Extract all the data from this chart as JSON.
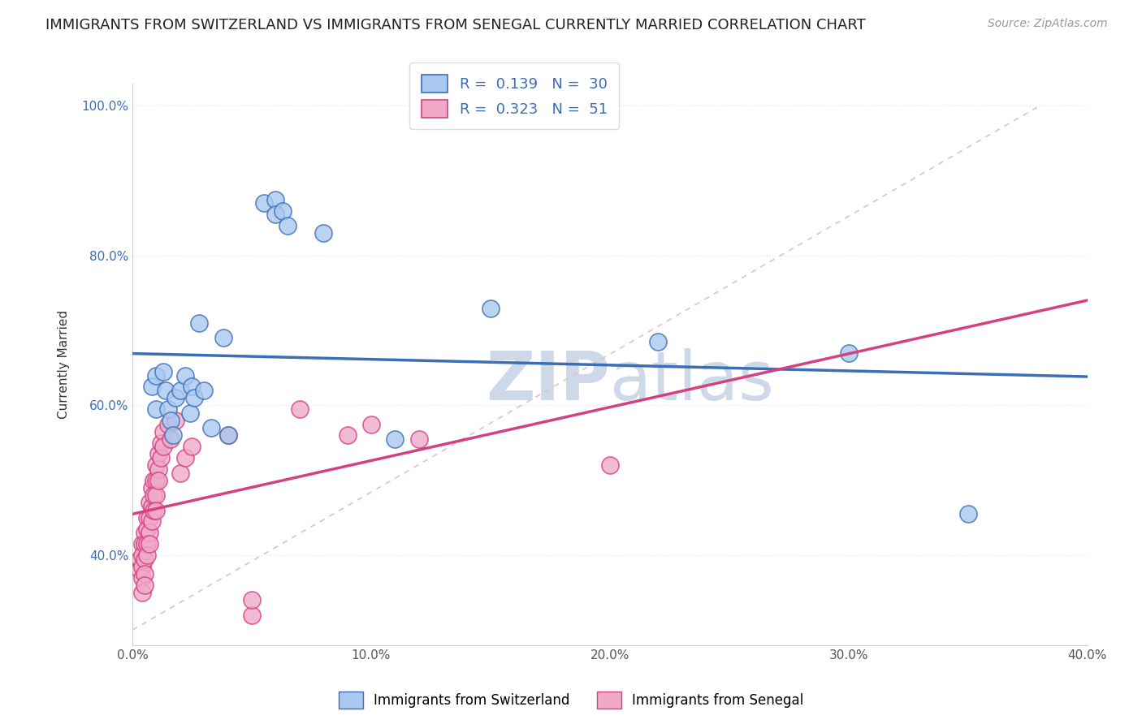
{
  "title": "IMMIGRANTS FROM SWITZERLAND VS IMMIGRANTS FROM SENEGAL CURRENTLY MARRIED CORRELATION CHART",
  "source": "Source: ZipAtlas.com",
  "ylabel": "Currently Married",
  "legend_label1": "Immigrants from Switzerland",
  "legend_label2": "Immigrants from Senegal",
  "r1": 0.139,
  "n1": 30,
  "r2": 0.323,
  "n2": 51,
  "color1": "#aac8f0",
  "color2": "#f0aac8",
  "line_color1": "#3b6eb5",
  "line_color2": "#d44080",
  "diagonal_color": "#e8c0c0",
  "xlim": [
    0.0,
    0.4
  ],
  "ylim": [
    0.28,
    1.03
  ],
  "xticks": [
    0.0,
    0.1,
    0.2,
    0.3,
    0.4
  ],
  "yticks": [
    0.4,
    0.6,
    0.8,
    1.0
  ],
  "xtick_labels": [
    "0.0%",
    "10.0%",
    "20.0%",
    "30.0%",
    "40.0%"
  ],
  "ytick_labels": [
    "40.0%",
    "60.0%",
    "80.0%",
    "100.0%"
  ],
  "switzerland_points": [
    [
      0.008,
      0.625
    ],
    [
      0.01,
      0.64
    ],
    [
      0.01,
      0.595
    ],
    [
      0.013,
      0.645
    ],
    [
      0.014,
      0.62
    ],
    [
      0.015,
      0.595
    ],
    [
      0.016,
      0.58
    ],
    [
      0.017,
      0.56
    ],
    [
      0.018,
      0.61
    ],
    [
      0.02,
      0.62
    ],
    [
      0.022,
      0.64
    ],
    [
      0.024,
      0.59
    ],
    [
      0.025,
      0.625
    ],
    [
      0.026,
      0.61
    ],
    [
      0.028,
      0.71
    ],
    [
      0.03,
      0.62
    ],
    [
      0.033,
      0.57
    ],
    [
      0.038,
      0.69
    ],
    [
      0.04,
      0.56
    ],
    [
      0.055,
      0.87
    ],
    [
      0.06,
      0.875
    ],
    [
      0.06,
      0.855
    ],
    [
      0.063,
      0.86
    ],
    [
      0.065,
      0.84
    ],
    [
      0.08,
      0.83
    ],
    [
      0.11,
      0.555
    ],
    [
      0.15,
      0.73
    ],
    [
      0.22,
      0.685
    ],
    [
      0.3,
      0.67
    ],
    [
      0.35,
      0.455
    ]
  ],
  "senegal_points": [
    [
      0.003,
      0.395
    ],
    [
      0.003,
      0.38
    ],
    [
      0.004,
      0.415
    ],
    [
      0.004,
      0.4
    ],
    [
      0.004,
      0.385
    ],
    [
      0.004,
      0.37
    ],
    [
      0.004,
      0.35
    ],
    [
      0.005,
      0.43
    ],
    [
      0.005,
      0.415
    ],
    [
      0.005,
      0.395
    ],
    [
      0.005,
      0.375
    ],
    [
      0.005,
      0.36
    ],
    [
      0.006,
      0.45
    ],
    [
      0.006,
      0.435
    ],
    [
      0.006,
      0.415
    ],
    [
      0.006,
      0.4
    ],
    [
      0.007,
      0.47
    ],
    [
      0.007,
      0.45
    ],
    [
      0.007,
      0.43
    ],
    [
      0.007,
      0.415
    ],
    [
      0.008,
      0.49
    ],
    [
      0.008,
      0.465
    ],
    [
      0.008,
      0.445
    ],
    [
      0.009,
      0.5
    ],
    [
      0.009,
      0.48
    ],
    [
      0.009,
      0.46
    ],
    [
      0.01,
      0.52
    ],
    [
      0.01,
      0.5
    ],
    [
      0.01,
      0.48
    ],
    [
      0.01,
      0.46
    ],
    [
      0.011,
      0.535
    ],
    [
      0.011,
      0.515
    ],
    [
      0.011,
      0.5
    ],
    [
      0.012,
      0.55
    ],
    [
      0.012,
      0.53
    ],
    [
      0.013,
      0.565
    ],
    [
      0.013,
      0.545
    ],
    [
      0.015,
      0.575
    ],
    [
      0.016,
      0.555
    ],
    [
      0.018,
      0.58
    ],
    [
      0.02,
      0.51
    ],
    [
      0.022,
      0.53
    ],
    [
      0.025,
      0.545
    ],
    [
      0.04,
      0.56
    ],
    [
      0.05,
      0.32
    ],
    [
      0.05,
      0.34
    ],
    [
      0.07,
      0.595
    ],
    [
      0.09,
      0.56
    ],
    [
      0.1,
      0.575
    ],
    [
      0.12,
      0.555
    ],
    [
      0.2,
      0.52
    ]
  ],
  "background_color": "#ffffff",
  "watermark_color": "#cdd8e8",
  "grid_color": "#dde8f0",
  "title_fontsize": 13,
  "axis_label_fontsize": 11,
  "tick_fontsize": 11,
  "tick_color_y": "#3b6eb5",
  "tick_color_x": "#555555"
}
